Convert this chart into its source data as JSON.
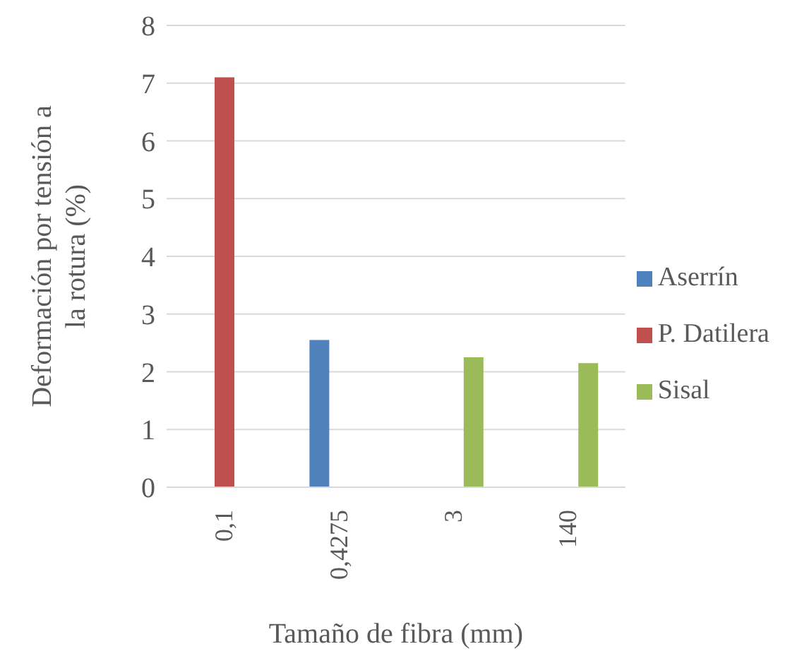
{
  "chart_data": {
    "type": "bar",
    "xlabel": "Tamaño de fibra (mm)",
    "ylabel": "Deformación por tensión a la rotura (%)",
    "categories": [
      "0,1",
      "0,4275",
      "3",
      "140"
    ],
    "series": [
      {
        "name": "Aserrín",
        "color": "#4f81bd",
        "values": [
          null,
          2.55,
          null,
          null
        ]
      },
      {
        "name": "P. Datilera",
        "color": "#c0504d",
        "values": [
          7.1,
          null,
          null,
          null
        ]
      },
      {
        "name": "Sisal",
        "color": "#9bbb59",
        "values": [
          null,
          null,
          2.25,
          2.15
        ]
      }
    ],
    "ylim": [
      0,
      8
    ],
    "yticks": [
      0,
      1,
      2,
      3,
      4,
      5,
      6,
      7,
      8
    ],
    "grid": "y",
    "legend": "right"
  }
}
